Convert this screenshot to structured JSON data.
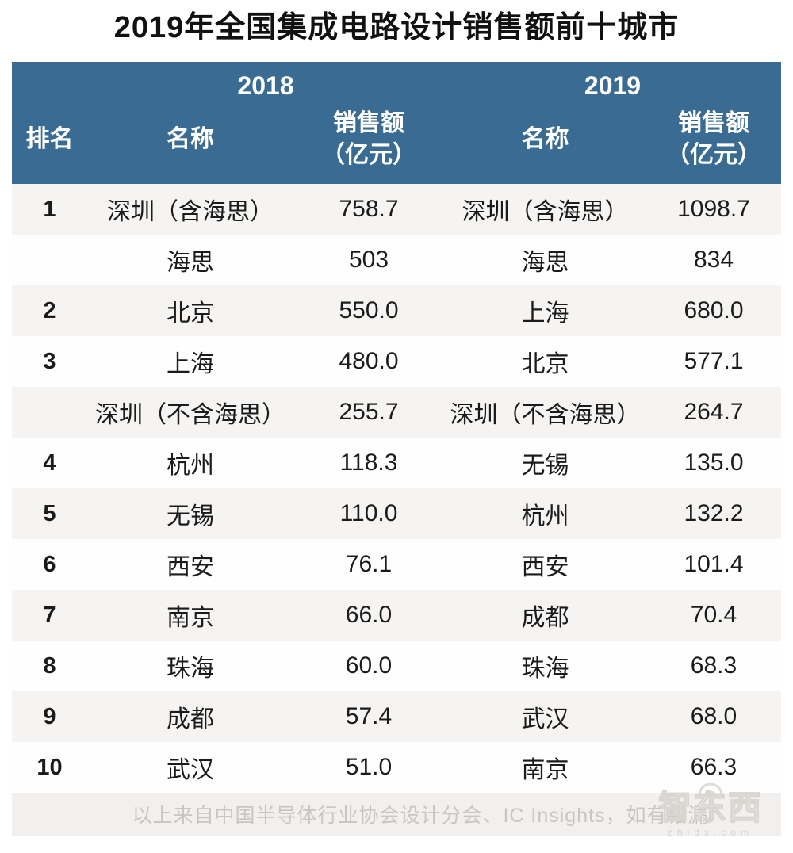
{
  "colors": {
    "header_blue": "#3a6b92",
    "row_stripe": "#f5f4f2",
    "row_white": "#fefefe",
    "footer_bg": "#f1f0ee",
    "footer_text": "#c8c6c3",
    "body_text": "#1b1b1b",
    "header_text": "#ffffff"
  },
  "title": "2019年全国集成电路设计销售额前十城市",
  "table": {
    "year_headers": [
      "2018",
      "2019"
    ],
    "columns": {
      "rank": "排名",
      "name": "名称",
      "sales_line1": "销售额",
      "sales_line2": "（亿元）"
    },
    "rows": [
      [
        "1",
        "深圳（含海思）",
        "758.7",
        "深圳（含海思）",
        "1098.7"
      ],
      [
        "",
        "海思",
        "503",
        "海思",
        "834"
      ],
      [
        "2",
        "北京",
        "550.0",
        "上海",
        "680.0"
      ],
      [
        "3",
        "上海",
        "480.0",
        "北京",
        "577.1"
      ],
      [
        "",
        "深圳（不含海思）",
        "255.7",
        "深圳（不含海思）",
        "264.7"
      ],
      [
        "4",
        "杭州",
        "118.3",
        "无锡",
        "135.0"
      ],
      [
        "5",
        "无锡",
        "110.0",
        "杭州",
        "132.2"
      ],
      [
        "6",
        "西安",
        "76.1",
        "西安",
        "101.4"
      ],
      [
        "7",
        "南京",
        "66.0",
        "成都",
        "70.4"
      ],
      [
        "8",
        "珠海",
        "60.0",
        "珠海",
        "68.3"
      ],
      [
        "9",
        "成都",
        "57.4",
        "武汉",
        "68.0"
      ],
      [
        "10",
        "武汉",
        "51.0",
        "南京",
        "66.3"
      ]
    ]
  },
  "chart_data": {
    "type": "table",
    "title": "2019年全国集成电路设计销售额前十城市",
    "columns": [
      "排名",
      "2018 名称",
      "2018 销售额（亿元）",
      "2019 名称",
      "2019 销售额（亿元）"
    ],
    "rows": [
      [
        "1",
        "深圳（含海思）",
        758.7,
        "深圳（含海思）",
        1098.7
      ],
      [
        "",
        "海思",
        503,
        "海思",
        834
      ],
      [
        "2",
        "北京",
        550.0,
        "上海",
        680.0
      ],
      [
        "3",
        "上海",
        480.0,
        "北京",
        577.1
      ],
      [
        "",
        "深圳（不含海思）",
        255.7,
        "深圳（不含海思）",
        264.7
      ],
      [
        "4",
        "杭州",
        118.3,
        "无锡",
        135.0
      ],
      [
        "5",
        "无锡",
        110.0,
        "杭州",
        132.2
      ],
      [
        "6",
        "西安",
        76.1,
        "西安",
        101.4
      ],
      [
        "7",
        "南京",
        66.0,
        "成都",
        70.4
      ],
      [
        "8",
        "珠海",
        60.0,
        "珠海",
        68.3
      ],
      [
        "9",
        "成都",
        57.4,
        "武汉",
        68.0
      ],
      [
        "10",
        "武汉",
        51.0,
        "南京",
        66.3
      ]
    ]
  },
  "footer": {
    "source_note": "以上来自中国半导体行业协会设计分会、IC Insights，如有错漏"
  },
  "watermark": {
    "brand": "智东西",
    "domain": "zhidx.com"
  }
}
